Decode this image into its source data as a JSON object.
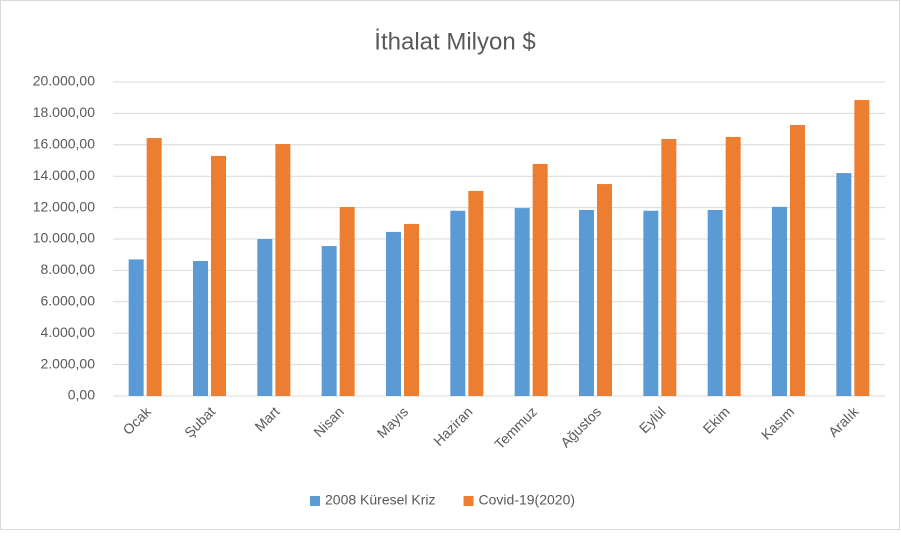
{
  "chart_data": {
    "type": "bar",
    "title": "İthalat Milyon $",
    "categories": [
      "Ocak",
      "Şubat",
      "Mart",
      "Nisan",
      "Mayıs",
      "Haziran",
      "Temmuz",
      "Ağustos",
      "Eylül",
      "Ekim",
      "Kasım",
      "Aralık"
    ],
    "series": [
      {
        "name": "2008 Küresel Kriz",
        "color": "#5b9bd5",
        "values": [
          8700,
          8600,
          10000,
          9550,
          10450,
          11800,
          11970,
          11850,
          11800,
          11850,
          12050,
          14200
        ]
      },
      {
        "name": "Covid-19(2020)",
        "color": "#ed7d31",
        "values": [
          16430,
          15290,
          16050,
          12040,
          10960,
          13060,
          14780,
          13500,
          16370,
          16500,
          17260,
          18850
        ]
      }
    ],
    "ylim": [
      0,
      20000
    ],
    "yticks": [
      {
        "value": 0,
        "label": "0,00"
      },
      {
        "value": 2000,
        "label": "2.000,00"
      },
      {
        "value": 4000,
        "label": "4.000,00"
      },
      {
        "value": 6000,
        "label": "6.000,00"
      },
      {
        "value": 8000,
        "label": "8.000,00"
      },
      {
        "value": 10000,
        "label": "10.000,00"
      },
      {
        "value": 12000,
        "label": "12.000,00"
      },
      {
        "value": 14000,
        "label": "14.000,00"
      },
      {
        "value": 16000,
        "label": "16.000,00"
      },
      {
        "value": 18000,
        "label": "18.000,00"
      },
      {
        "value": 20000,
        "label": "20.000,00"
      }
    ],
    "grid": true,
    "legend": "bottom"
  }
}
